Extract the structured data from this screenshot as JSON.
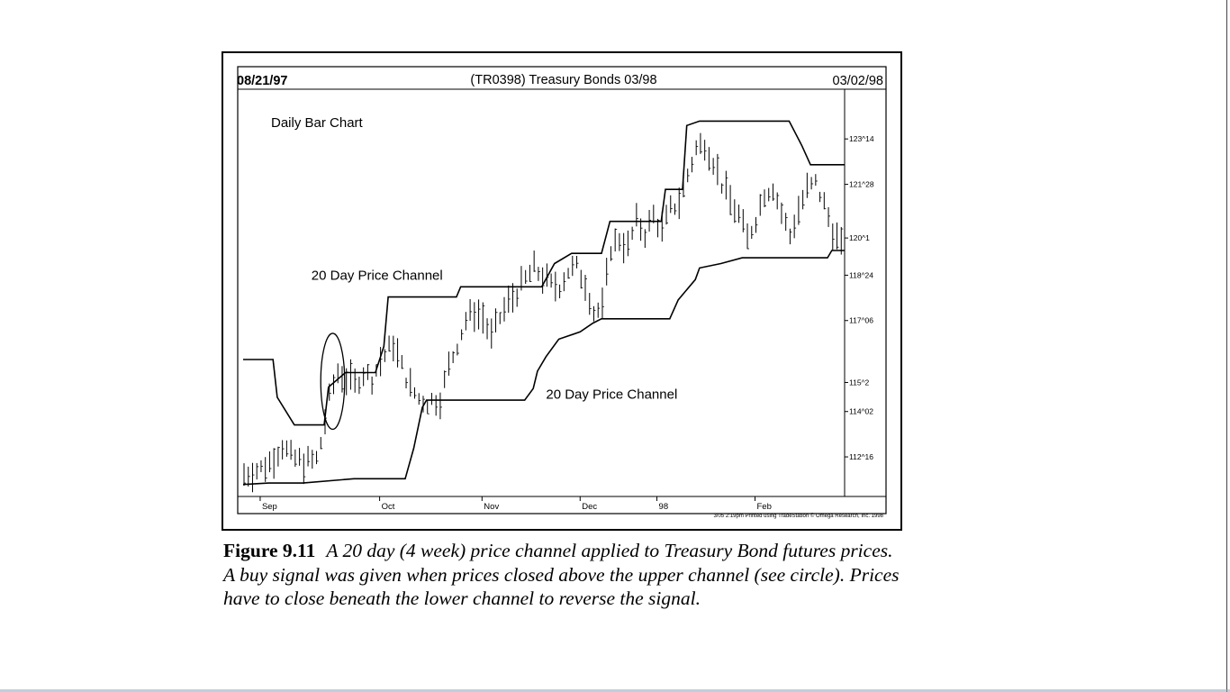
{
  "chart_data": {
    "type": "ohlc_bar",
    "title": "(TR0398) Treasury Bonds 03/98",
    "start_date": "08/21/97",
    "end_date": "03/02/98",
    "inner_label": "Daily Bar Chart",
    "ylim": [
      111.2,
      124.9
    ],
    "x_ticks": [
      "Sep",
      "Oct",
      "Nov",
      "Dec",
      "98",
      "Feb"
    ],
    "x_tick_positions": [
      4,
      32,
      56,
      79,
      97,
      120
    ],
    "num_bars": 141,
    "y_ticks": [
      {
        "label": "123^14",
        "value": 123.4375
      },
      {
        "label": "121^28",
        "value": 121.875
      },
      {
        "label": "120^1",
        "value": 120.03
      },
      {
        "label": "118^24",
        "value": 118.75
      },
      {
        "label": "117^06",
        "value": 117.19
      },
      {
        "label": "115^2",
        "value": 115.06
      },
      {
        "label": "114^02",
        "value": 114.06
      },
      {
        "label": "112^16",
        "value": 112.5
      }
    ],
    "annotations": [
      {
        "text": "20 Day Price Channel",
        "target": "upper_channel",
        "x": 16,
        "y": 118.6
      },
      {
        "text": "20 Day Price Channel",
        "target": "lower_channel",
        "x": 71,
        "y": 114.5
      }
    ],
    "circle": {
      "x_center": 21,
      "y_center": 115.1,
      "x_radius": 2.8,
      "y_radius": 1.65
    },
    "footer": "3/05 2:19pm Printed using TradeStation © Omega Research, Inc. 1998",
    "upper_channel": [
      [
        0,
        115.85
      ],
      [
        7,
        115.85
      ],
      [
        8,
        114.55
      ],
      [
        12,
        113.6
      ],
      [
        19,
        113.6
      ],
      [
        20,
        114.9
      ],
      [
        24,
        115.4
      ],
      [
        31,
        115.4
      ],
      [
        33,
        116.3
      ],
      [
        34,
        118.0
      ],
      [
        50,
        118.0
      ],
      [
        51,
        118.35
      ],
      [
        70,
        118.35
      ],
      [
        73,
        119.15
      ],
      [
        77,
        119.5
      ],
      [
        84,
        119.5
      ],
      [
        86,
        120.6
      ],
      [
        98,
        120.6
      ],
      [
        99,
        121.7
      ],
      [
        103,
        121.7
      ],
      [
        104,
        123.9
      ],
      [
        107,
        124.05
      ],
      [
        128,
        124.05
      ],
      [
        131,
        123.2
      ],
      [
        133,
        122.55
      ],
      [
        135,
        122.55
      ],
      [
        141,
        122.55
      ]
    ],
    "lower_channel": [
      [
        0,
        111.55
      ],
      [
        6,
        111.6
      ],
      [
        14,
        111.6
      ],
      [
        26,
        111.75
      ],
      [
        38,
        111.75
      ],
      [
        40,
        112.8
      ],
      [
        42,
        114.2
      ],
      [
        43,
        114.45
      ],
      [
        66,
        114.45
      ],
      [
        68,
        114.85
      ],
      [
        69,
        115.45
      ],
      [
        71,
        115.95
      ],
      [
        74,
        116.55
      ],
      [
        79,
        116.8
      ],
      [
        82,
        117.1
      ],
      [
        84,
        117.25
      ],
      [
        100,
        117.25
      ],
      [
        102,
        117.9
      ],
      [
        106,
        118.6
      ],
      [
        107,
        119.0
      ],
      [
        112,
        119.15
      ],
      [
        117,
        119.35
      ],
      [
        123,
        119.35
      ],
      [
        130,
        119.35
      ],
      [
        137,
        119.35
      ],
      [
        138,
        119.6
      ],
      [
        141,
        119.6
      ]
    ],
    "price_anchors": [
      [
        0,
        111.9
      ],
      [
        4,
        112.1
      ],
      [
        6,
        112.3
      ],
      [
        9,
        112.9
      ],
      [
        11,
        112.5
      ],
      [
        14,
        112.3
      ],
      [
        17,
        112.4
      ],
      [
        18,
        113.0
      ],
      [
        20,
        114.5
      ],
      [
        21,
        115.0
      ],
      [
        22,
        115.4
      ],
      [
        24,
        115.2
      ],
      [
        26,
        115.0
      ],
      [
        28,
        115.4
      ],
      [
        30,
        115.2
      ],
      [
        32,
        115.8
      ],
      [
        35,
        116.4
      ],
      [
        37,
        115.6
      ],
      [
        39,
        114.9
      ],
      [
        41,
        114.5
      ],
      [
        43,
        114.4
      ],
      [
        46,
        114.5
      ],
      [
        48,
        115.6
      ],
      [
        50,
        116.4
      ],
      [
        52,
        117.2
      ],
      [
        54,
        117.5
      ],
      [
        56,
        117.3
      ],
      [
        58,
        116.6
      ],
      [
        60,
        117.3
      ],
      [
        62,
        117.8
      ],
      [
        64,
        118.2
      ],
      [
        66,
        118.6
      ],
      [
        68,
        119.0
      ],
      [
        70,
        118.7
      ],
      [
        72,
        118.4
      ],
      [
        74,
        118.4
      ],
      [
        76,
        118.9
      ],
      [
        78,
        119.0
      ],
      [
        80,
        118.5
      ],
      [
        82,
        117.5
      ],
      [
        84,
        117.6
      ],
      [
        86,
        119.7
      ],
      [
        88,
        120.0
      ],
      [
        90,
        119.7
      ],
      [
        92,
        120.6
      ],
      [
        94,
        120.2
      ],
      [
        96,
        120.8
      ],
      [
        98,
        120.3
      ],
      [
        100,
        121.0
      ],
      [
        102,
        121.3
      ],
      [
        104,
        122.2
      ],
      [
        106,
        123.1
      ],
      [
        108,
        123.3
      ],
      [
        110,
        122.7
      ],
      [
        112,
        121.9
      ],
      [
        114,
        121.3
      ],
      [
        116,
        120.8
      ],
      [
        118,
        120.0
      ],
      [
        120,
        120.7
      ],
      [
        122,
        121.6
      ],
      [
        124,
        121.8
      ],
      [
        126,
        120.9
      ],
      [
        128,
        120.1
      ],
      [
        130,
        121.0
      ],
      [
        132,
        121.7
      ],
      [
        134,
        121.9
      ],
      [
        136,
        121.2
      ],
      [
        138,
        120.3
      ],
      [
        140,
        119.7
      ],
      [
        141,
        119.7
      ]
    ]
  },
  "caption": {
    "figure_number": "Figure 9.11",
    "text": "A 20 day (4 week) price channel applied to Treasury Bond futures prices. A buy signal was given when prices closed above the upper channel (see circle). Prices have to close beneath the lower channel to reverse the signal."
  }
}
